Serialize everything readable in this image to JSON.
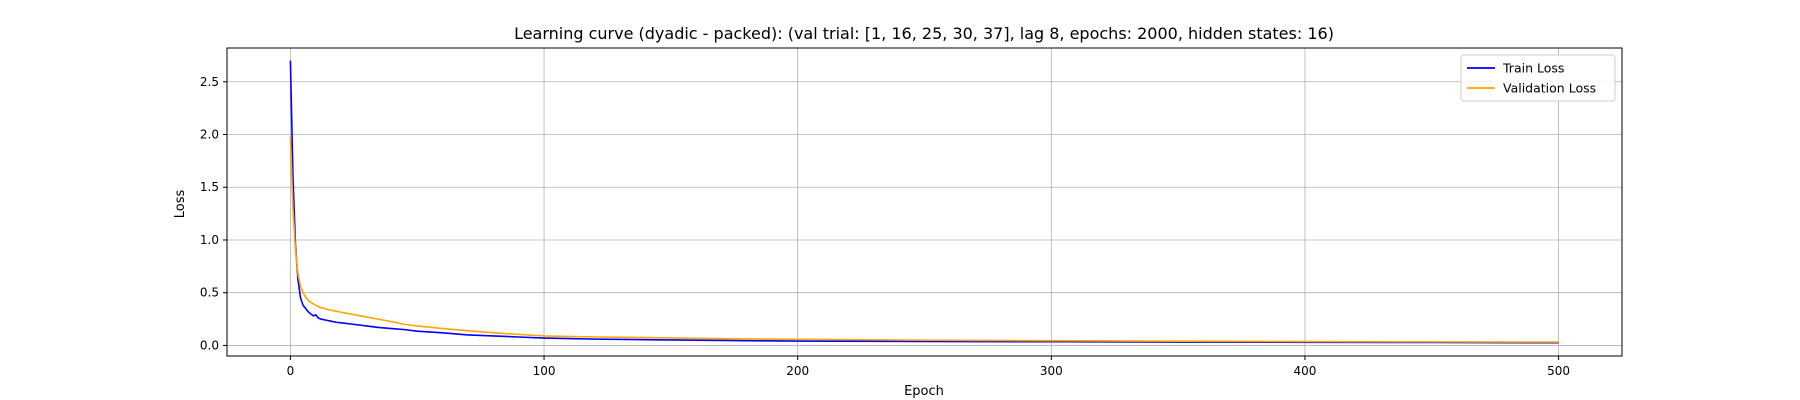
{
  "chart_data": {
    "type": "line",
    "title": "Learning curve (dyadic - packed): (val trial: [1, 16, 25, 30, 37], lag 8, epochs: 2000, hidden states: 16)",
    "xlabel": "Epoch",
    "ylabel": "Loss",
    "xlim": [
      -25,
      525
    ],
    "ylim": [
      -0.1,
      2.82
    ],
    "xticks": [
      0,
      100,
      200,
      300,
      400,
      500
    ],
    "yticks": [
      0.0,
      0.5,
      1.0,
      1.5,
      2.0,
      2.5
    ],
    "xtick_labels": [
      "0",
      "100",
      "200",
      "300",
      "400",
      "500"
    ],
    "ytick_labels": [
      "0.0",
      "0.5",
      "1.0",
      "1.5",
      "2.0",
      "2.5"
    ],
    "grid": true,
    "legend_position": "top-right",
    "series": [
      {
        "name": "Train Loss",
        "color": "#0000ff",
        "x": [
          0,
          1,
          2,
          3,
          4,
          5,
          6,
          7,
          8,
          9,
          10,
          11,
          12,
          14,
          16,
          18,
          20,
          25,
          30,
          35,
          40,
          45,
          50,
          60,
          70,
          80,
          90,
          100,
          120,
          140,
          160,
          180,
          200,
          250,
          300,
          350,
          400,
          450,
          500
        ],
        "y": [
          2.7,
          1.6,
          0.95,
          0.62,
          0.45,
          0.38,
          0.35,
          0.32,
          0.3,
          0.28,
          0.29,
          0.26,
          0.25,
          0.24,
          0.23,
          0.22,
          0.215,
          0.2,
          0.185,
          0.17,
          0.16,
          0.15,
          0.135,
          0.12,
          0.1,
          0.09,
          0.08,
          0.07,
          0.06,
          0.055,
          0.05,
          0.045,
          0.042,
          0.038,
          0.035,
          0.032,
          0.03,
          0.028,
          0.026
        ]
      },
      {
        "name": "Validation Loss",
        "color": "#ffa500",
        "x": [
          0,
          1,
          2,
          3,
          4,
          5,
          6,
          7,
          8,
          10,
          12,
          15,
          20,
          30,
          40,
          45,
          50,
          60,
          70,
          80,
          90,
          100,
          120,
          140,
          160,
          180,
          200,
          250,
          300,
          350,
          400,
          450,
          500
        ],
        "y": [
          1.98,
          1.3,
          0.9,
          0.68,
          0.56,
          0.5,
          0.46,
          0.43,
          0.41,
          0.38,
          0.36,
          0.34,
          0.315,
          0.27,
          0.225,
          0.2,
          0.185,
          0.16,
          0.14,
          0.12,
          0.105,
          0.09,
          0.08,
          0.075,
          0.068,
          0.062,
          0.058,
          0.05,
          0.045,
          0.04,
          0.037,
          0.034,
          0.032
        ]
      }
    ]
  }
}
